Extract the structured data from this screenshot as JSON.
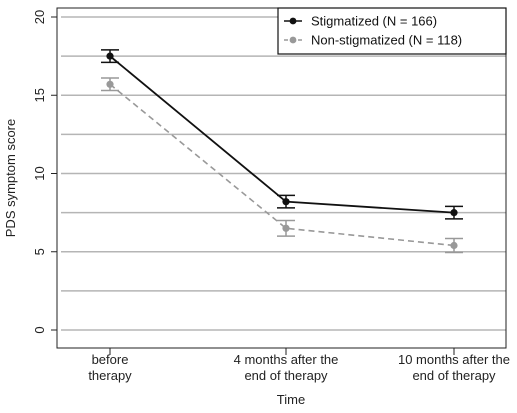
{
  "chart_data": {
    "type": "line",
    "title": "",
    "xlabel": "Time",
    "ylabel": "PDS symptom score",
    "ylim": [
      0,
      20
    ],
    "y_ticks": [
      0,
      5,
      10,
      15,
      20
    ],
    "y_gridlines": [
      0,
      2.5,
      5,
      7.5,
      10,
      12.5,
      15,
      17.5,
      20
    ],
    "grid": "horizontal",
    "legend_position": "top-right",
    "categories": [
      [
        "before",
        "therapy"
      ],
      [
        "4 months after the",
        "end of therapy"
      ],
      [
        "10 months after the",
        "end of therapy"
      ]
    ],
    "series": [
      {
        "name": "Stigmatized",
        "legend_label": "Stigmatized  (N = 166)",
        "color": "#111111",
        "line_style": "solid",
        "values": [
          17.5,
          8.2,
          7.5
        ],
        "error_low": [
          17.1,
          7.8,
          7.1
        ],
        "error_high": [
          17.9,
          8.6,
          7.9
        ]
      },
      {
        "name": "Non-stigmatized",
        "legend_label": "Non-stigmatized  (N = 118)",
        "color": "#999999",
        "line_style": "dashed",
        "values": [
          15.7,
          6.5,
          5.4
        ],
        "error_low": [
          15.3,
          6.0,
          4.95
        ],
        "error_high": [
          16.1,
          7.0,
          5.85
        ]
      }
    ]
  }
}
